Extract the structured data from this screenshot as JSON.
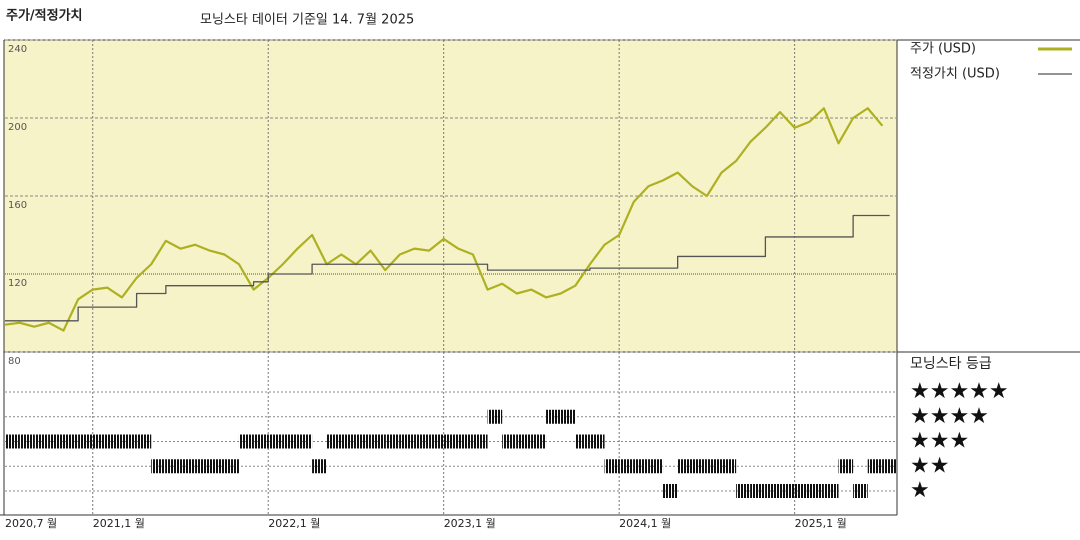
{
  "chart_data": {
    "type": "line",
    "title": "주가/적정가치",
    "subtitle": "모닝스타 데이터 기준일 14. 7월 2025",
    "x": [
      "2020-07",
      "2020-08",
      "2020-09",
      "2020-10",
      "2020-11",
      "2020-12",
      "2021-01",
      "2021-02",
      "2021-03",
      "2021-04",
      "2021-05",
      "2021-06",
      "2021-07",
      "2021-08",
      "2021-09",
      "2021-10",
      "2021-11",
      "2021-12",
      "2022-01",
      "2022-02",
      "2022-03",
      "2022-04",
      "2022-05",
      "2022-06",
      "2022-07",
      "2022-08",
      "2022-09",
      "2022-10",
      "2022-11",
      "2022-12",
      "2023-01",
      "2023-02",
      "2023-03",
      "2023-04",
      "2023-05",
      "2023-06",
      "2023-07",
      "2023-08",
      "2023-09",
      "2023-10",
      "2023-11",
      "2023-12",
      "2024-01",
      "2024-02",
      "2024-03",
      "2024-04",
      "2024-05",
      "2024-06",
      "2024-07",
      "2024-08",
      "2024-09",
      "2024-10",
      "2024-11",
      "2024-12",
      "2025-01",
      "2025-02",
      "2025-03",
      "2025-04",
      "2025-05",
      "2025-06",
      "2025-07"
    ],
    "series": [
      {
        "name": "주가 (USD)",
        "color": "#adb021",
        "step": false,
        "values": [
          94,
          95,
          93,
          95,
          91,
          107,
          112,
          113,
          108,
          118,
          125,
          137,
          133,
          135,
          132,
          130,
          125,
          112,
          118,
          125,
          133,
          140,
          125,
          130,
          125,
          132,
          122,
          130,
          133,
          132,
          138,
          133,
          130,
          112,
          115,
          110,
          112,
          108,
          110,
          114,
          125,
          135,
          140,
          157,
          165,
          168,
          172,
          165,
          160,
          172,
          178,
          188,
          195,
          203,
          195,
          198,
          205,
          187,
          200,
          205,
          196
        ]
      },
      {
        "name": "적정가치 (USD)",
        "color": "#555555",
        "step": true,
        "values": [
          96,
          96,
          96,
          96,
          96,
          103,
          103,
          103,
          103,
          110,
          110,
          114,
          114,
          114,
          114,
          114,
          114,
          116,
          120,
          120,
          120,
          125,
          125,
          125,
          125,
          125,
          125,
          125,
          125,
          125,
          125,
          125,
          125,
          122,
          122,
          122,
          122,
          122,
          122,
          122,
          123,
          123,
          123,
          123,
          123,
          123,
          129,
          129,
          129,
          129,
          129,
          129,
          139,
          139,
          139,
          139,
          139,
          139,
          150,
          150,
          150
        ]
      }
    ],
    "xlim": [
      "2020-07",
      "2025-08"
    ],
    "xticks": [
      {
        "value": "2020-07",
        "label": "2020,7 월"
      },
      {
        "value": "2021-01",
        "label": "2021,1 월"
      },
      {
        "value": "2022-01",
        "label": "2022,1 월"
      },
      {
        "value": "2023-01",
        "label": "2023,1 월"
      },
      {
        "value": "2024-01",
        "label": "2024,1 월"
      },
      {
        "value": "2025-01",
        "label": "2025,1 월"
      }
    ],
    "ylim": [
      80,
      240
    ],
    "yticks": [
      80,
      120,
      160,
      200,
      240
    ],
    "grid": true,
    "ratings": {
      "title": "모닝스타 등급",
      "color": "#111111",
      "levels": [
        {
          "value": 5,
          "label": "★★★★★"
        },
        {
          "value": 4,
          "label": "★★★★"
        },
        {
          "value": 3,
          "label": "★★★"
        },
        {
          "value": 2,
          "label": "★★"
        },
        {
          "value": 1,
          "label": "★"
        }
      ],
      "values": [
        3,
        3,
        3,
        3,
        3,
        3,
        3,
        3,
        3,
        3,
        2,
        2,
        2,
        2,
        2,
        2,
        3,
        3,
        3,
        3,
        3,
        2,
        3,
        3,
        3,
        3,
        3,
        3,
        3,
        3,
        3,
        3,
        3,
        4,
        3,
        3,
        3,
        4,
        4,
        3,
        3,
        2,
        2,
        2,
        2,
        1,
        2,
        2,
        2,
        2,
        1,
        1,
        1,
        1,
        1,
        1,
        1,
        2,
        1,
        2,
        2
      ]
    }
  }
}
